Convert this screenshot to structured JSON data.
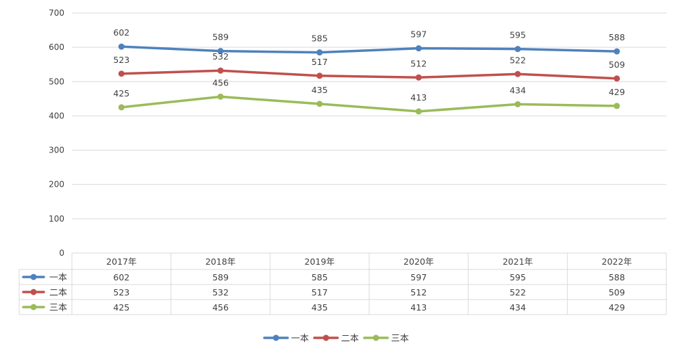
{
  "chart_data": {
    "type": "line",
    "title": "",
    "xlabel": "",
    "ylabel": "",
    "ylim": [
      0,
      700
    ],
    "ytick_step": 100,
    "categories": [
      "2017年",
      "2018年",
      "2019年",
      "2020年",
      "2021年",
      "2022年"
    ],
    "series": [
      {
        "name": "一本",
        "color": "#4F81BD",
        "values": [
          602,
          589,
          585,
          597,
          595,
          588
        ]
      },
      {
        "name": "二本",
        "color": "#C0504D",
        "values": [
          523,
          532,
          517,
          512,
          522,
          509
        ]
      },
      {
        "name": "三本",
        "color": "#9BBB59",
        "values": [
          425,
          456,
          435,
          413,
          434,
          429
        ]
      }
    ],
    "grid": true,
    "data_table": true,
    "legend_position": "bottom"
  }
}
